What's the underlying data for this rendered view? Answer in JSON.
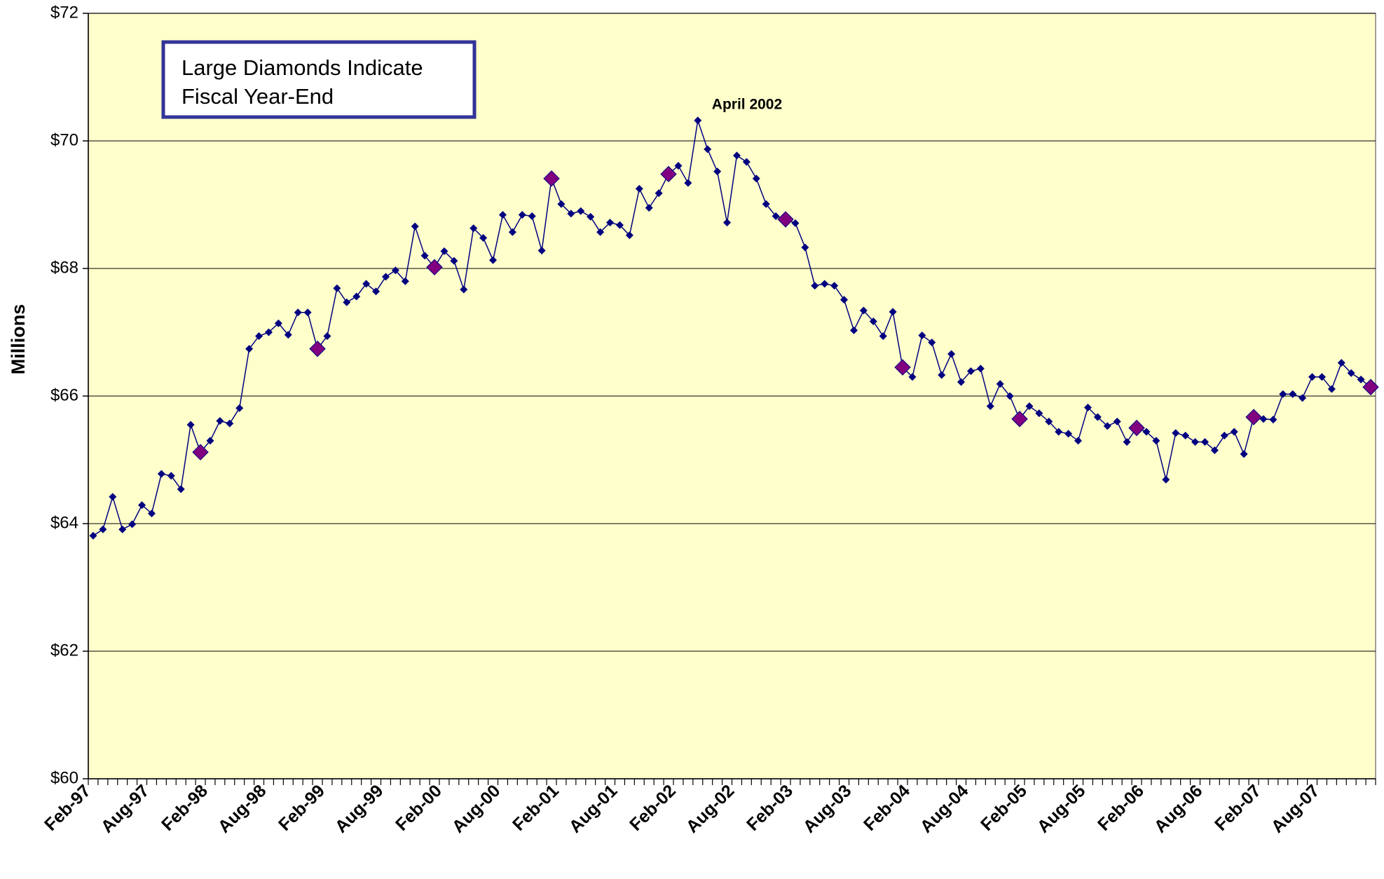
{
  "chart_data": {
    "type": "line",
    "y_label": "Millions",
    "annotation": "April 2002",
    "note_lines": [
      "Large Diamonds Indicate",
      "Fiscal Year-End"
    ],
    "categories": [
      "Feb-97",
      null,
      null,
      null,
      null,
      null,
      "Aug-97",
      null,
      null,
      null,
      null,
      null,
      "Feb-98",
      null,
      null,
      null,
      null,
      null,
      "Aug-98",
      null,
      null,
      null,
      null,
      null,
      "Feb-99",
      null,
      null,
      null,
      null,
      null,
      "Aug-99",
      null,
      null,
      null,
      null,
      null,
      "Feb-00",
      null,
      null,
      null,
      null,
      null,
      "Aug-00",
      null,
      null,
      null,
      null,
      null,
      "Feb-01",
      null,
      null,
      null,
      null,
      null,
      "Aug-01",
      null,
      null,
      null,
      null,
      null,
      "Feb-02",
      null,
      null,
      null,
      null,
      null,
      "Aug-02",
      null,
      null,
      null,
      null,
      null,
      "Feb-03",
      null,
      null,
      null,
      null,
      null,
      "Aug-03",
      null,
      null,
      null,
      null,
      null,
      "Feb-04",
      null,
      null,
      null,
      null,
      null,
      "Aug-04",
      null,
      null,
      null,
      null,
      null,
      "Feb-05",
      null,
      null,
      null,
      null,
      null,
      "Aug-05",
      null,
      null,
      null,
      null,
      null,
      "Feb-06",
      null,
      null,
      null,
      null,
      null,
      "Aug-06",
      null,
      null,
      null,
      null,
      null,
      "Feb-07",
      null,
      null,
      null,
      null,
      null,
      "Aug-07",
      null,
      null,
      null,
      null,
      null
    ],
    "values": [
      63.81,
      63.91,
      64.42,
      63.91,
      63.99,
      64.29,
      64.16,
      64.78,
      64.75,
      64.54,
      65.55,
      65.12,
      65.3,
      65.61,
      65.57,
      65.81,
      66.74,
      66.94,
      67.0,
      67.14,
      66.96,
      67.31,
      67.31,
      66.74,
      66.94,
      67.69,
      67.47,
      67.56,
      67.76,
      67.64,
      67.87,
      67.97,
      67.8,
      68.66,
      68.2,
      68.02,
      68.27,
      68.12,
      67.67,
      68.63,
      68.48,
      68.13,
      68.84,
      68.57,
      68.84,
      68.82,
      68.28,
      69.41,
      69.01,
      68.86,
      68.9,
      68.81,
      68.57,
      68.72,
      68.68,
      68.52,
      69.25,
      68.95,
      69.18,
      69.48,
      69.61,
      69.34,
      70.32,
      69.87,
      69.52,
      68.72,
      69.77,
      69.67,
      69.41,
      69.01,
      68.82,
      68.77,
      68.71,
      68.33,
      67.73,
      67.76,
      67.73,
      67.51,
      67.03,
      67.34,
      67.17,
      66.94,
      67.32,
      66.45,
      66.3,
      66.95,
      66.84,
      66.33,
      66.66,
      66.22,
      66.39,
      66.43,
      65.84,
      66.19,
      66.0,
      65.64,
      65.84,
      65.73,
      65.6,
      65.44,
      65.41,
      65.3,
      65.82,
      65.67,
      65.53,
      65.6,
      65.28,
      65.5,
      65.44,
      65.3,
      64.69,
      65.42,
      65.38,
      65.28,
      65.28,
      65.15,
      65.38,
      65.44,
      65.09,
      65.67,
      65.64,
      65.63,
      66.03,
      66.03,
      65.97,
      66.3,
      66.3,
      66.11,
      66.52,
      66.36,
      66.26,
      66.14
    ],
    "color": "#000080",
    "highlight_color": "#800080",
    "highlight_indices": [
      11,
      23,
      35,
      47,
      59,
      71,
      83,
      95,
      107,
      119,
      131
    ],
    "annotation_index": 62,
    "ylim": [
      60,
      72
    ],
    "yticks": [
      {
        "value": 60,
        "label": "$60"
      },
      {
        "value": 62,
        "label": "$62"
      },
      {
        "value": 64,
        "label": "$64"
      },
      {
        "value": 66,
        "label": "$66"
      },
      {
        "value": 68,
        "label": "$68"
      },
      {
        "value": 70,
        "label": "$70"
      },
      {
        "value": 72,
        "label": "$72"
      }
    ],
    "grid": true,
    "background": "#FFFFCC"
  }
}
